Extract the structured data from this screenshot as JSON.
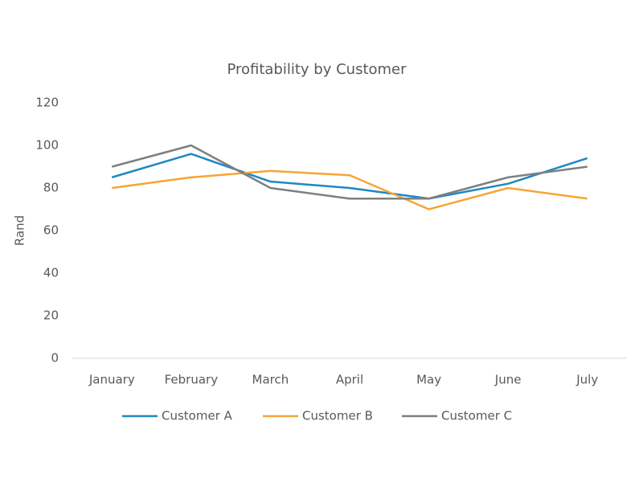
{
  "chart_data": {
    "type": "line",
    "title": "Profitability by Customer",
    "y_label": "Rand",
    "categories": [
      "January",
      "February",
      "March",
      "April",
      "May",
      "June",
      "July"
    ],
    "series": [
      {
        "name": "Customer A",
        "color": "#1f88c2",
        "values": [
          85,
          96,
          83,
          80,
          75,
          82,
          94
        ]
      },
      {
        "name": "Customer B",
        "color": "#f7a535",
        "values": [
          80,
          85,
          88,
          86,
          70,
          80,
          75
        ]
      },
      {
        "name": "Customer C",
        "color": "#7f7f7f",
        "values": [
          90,
          100,
          80,
          75,
          75,
          85,
          90
        ]
      }
    ],
    "ylim": [
      0,
      120
    ],
    "yticks": [
      0,
      20,
      40,
      60,
      80,
      100,
      120
    ],
    "grid": false,
    "legend": "bottom"
  }
}
